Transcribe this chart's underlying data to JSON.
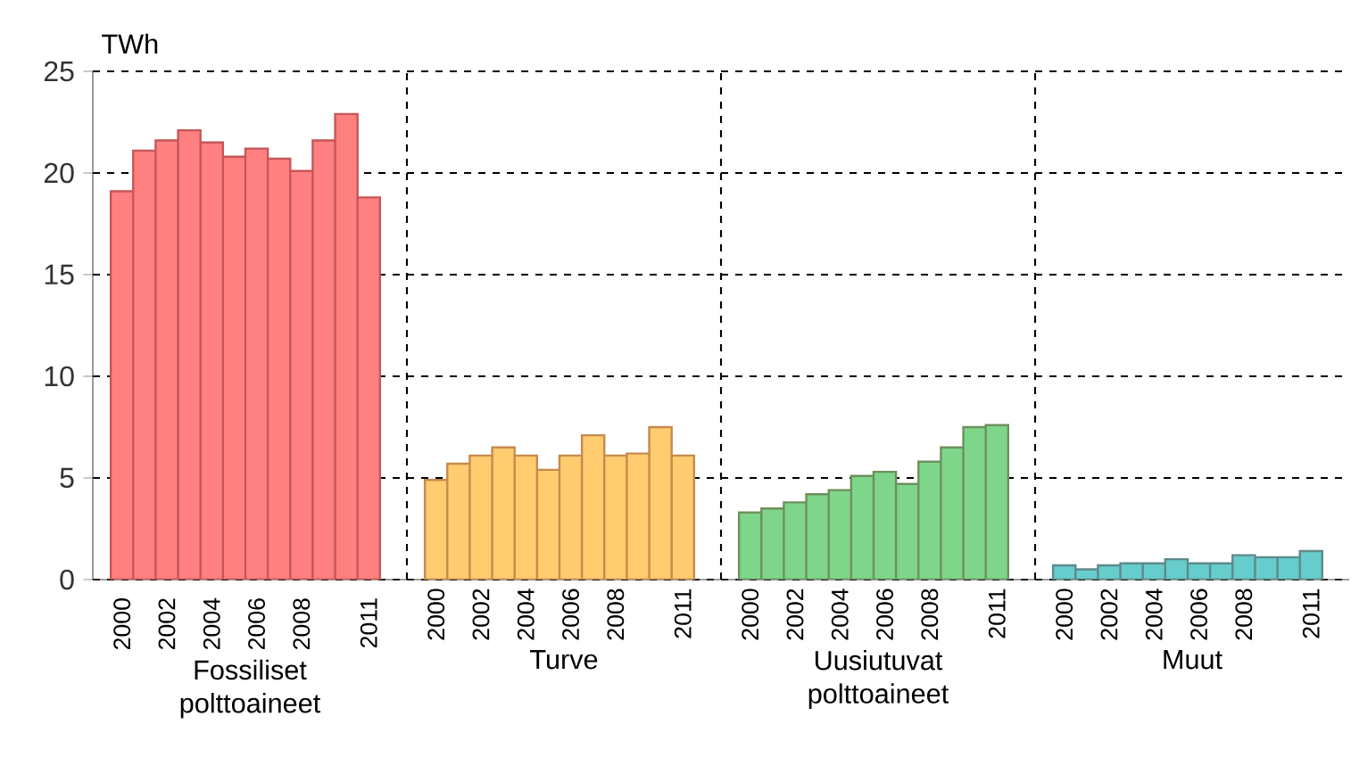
{
  "chart_data": [
    {
      "type": "bar",
      "ylabel": "TWh",
      "xlabel": "Fossiliset polttoaineet",
      "categories": [
        "2000",
        null,
        "2002",
        null,
        "2004",
        null,
        "2006",
        null,
        "2008",
        null,
        null,
        "2011"
      ],
      "values": [
        19.1,
        21.1,
        21.6,
        22.1,
        21.5,
        20.8,
        21.2,
        20.7,
        20.1,
        21.6,
        22.9,
        18.8
      ],
      "color": "#ff8080",
      "ylim": [
        0,
        25
      ],
      "yticks": [
        0,
        5,
        10,
        15,
        20,
        25
      ],
      "grid": "y"
    },
    {
      "type": "bar",
      "xlabel": "Turve",
      "categories": [
        "2000",
        null,
        "2002",
        null,
        "2004",
        null,
        "2006",
        null,
        "2008",
        null,
        null,
        "2011"
      ],
      "values": [
        4.9,
        5.7,
        6.1,
        6.5,
        6.1,
        5.4,
        6.1,
        7.1,
        6.1,
        6.2,
        7.5,
        6.1
      ],
      "color": "#ffcc70",
      "ylim": [
        0,
        25
      ],
      "yticks": [
        0,
        5,
        10,
        15,
        20,
        25
      ],
      "grid": "y",
      "tick_labels": "x"
    },
    {
      "type": "bar",
      "xlabel": "Uusiutuvat polttoaineet",
      "categories": [
        "2000",
        null,
        "2002",
        null,
        "2004",
        null,
        "2006",
        null,
        "2008",
        null,
        null,
        "2011"
      ],
      "values": [
        3.3,
        3.5,
        3.8,
        4.2,
        4.4,
        5.1,
        5.3,
        4.7,
        5.8,
        6.5,
        7.5,
        7.6
      ],
      "color": "#7dd68a",
      "ylim": [
        0,
        25
      ],
      "yticks": [
        0,
        5,
        10,
        15,
        20,
        25
      ],
      "grid": "y",
      "tick_labels": "x"
    },
    {
      "type": "bar",
      "xlabel": "Muut",
      "categories": [
        "2000",
        null,
        "2002",
        null,
        "2004",
        null,
        "2006",
        null,
        "2008",
        null,
        null,
        "2011"
      ],
      "values": [
        0.7,
        0.5,
        0.7,
        0.8,
        0.8,
        1.0,
        0.8,
        0.8,
        1.2,
        1.1,
        1.1,
        1.4
      ],
      "color": "#66cccc",
      "ylim": [
        0,
        25
      ],
      "yticks": [
        0,
        5,
        10,
        15,
        20,
        25
      ],
      "grid": "y",
      "tick_labels": "x"
    }
  ]
}
